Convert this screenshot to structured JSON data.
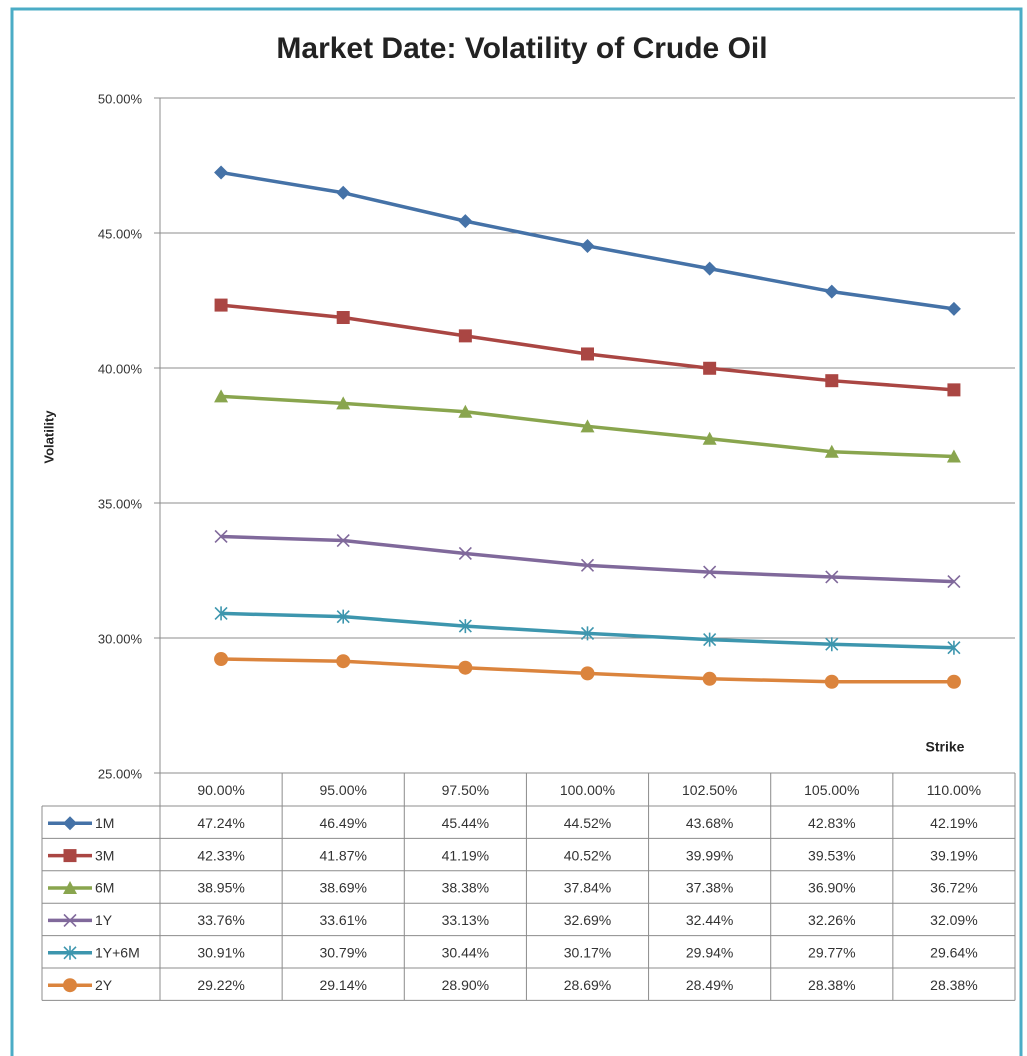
{
  "chart_data": {
    "type": "line",
    "title": "Market Date: Volatility of Crude Oil",
    "ylabel": "Volatility",
    "xlabel": "Strike",
    "categories": [
      "90.00%",
      "95.00%",
      "97.50%",
      "100.00%",
      "102.50%",
      "105.00%",
      "110.00%"
    ],
    "ylim": [
      25,
      50
    ],
    "yticks": [
      {
        "value": 25,
        "label": "25.00%"
      },
      {
        "value": 30,
        "label": "30.00%"
      },
      {
        "value": 35,
        "label": "35.00%"
      },
      {
        "value": 40,
        "label": "40.00%"
      },
      {
        "value": 45,
        "label": "45.00%"
      },
      {
        "value": 50,
        "label": "50.00%"
      }
    ],
    "grid": true,
    "series": [
      {
        "name": "1M",
        "color": "#4572a7",
        "marker": "diamond",
        "values": [
          47.24,
          46.49,
          45.44,
          44.52,
          43.68,
          42.83,
          42.19
        ],
        "value_labels": [
          "47.24%",
          "46.49%",
          "45.44%",
          "44.52%",
          "43.68%",
          "42.83%",
          "42.19%"
        ]
      },
      {
        "name": "3M",
        "color": "#aa4643",
        "marker": "square",
        "values": [
          42.33,
          41.87,
          41.19,
          40.52,
          39.99,
          39.53,
          39.19
        ],
        "value_labels": [
          "42.33%",
          "41.87%",
          "41.19%",
          "40.52%",
          "39.99%",
          "39.53%",
          "39.19%"
        ]
      },
      {
        "name": "6M",
        "color": "#89a54e",
        "marker": "triangle",
        "values": [
          38.95,
          38.69,
          38.38,
          37.84,
          37.38,
          36.9,
          36.72
        ],
        "value_labels": [
          "38.95%",
          "38.69%",
          "38.38%",
          "37.84%",
          "37.38%",
          "36.90%",
          "36.72%"
        ]
      },
      {
        "name": "1Y",
        "color": "#80699b",
        "marker": "x",
        "values": [
          33.76,
          33.61,
          33.13,
          32.69,
          32.44,
          32.26,
          32.09
        ],
        "value_labels": [
          "33.76%",
          "33.61%",
          "33.13%",
          "32.69%",
          "32.44%",
          "32.26%",
          "32.09%"
        ]
      },
      {
        "name": "1Y+6M",
        "color": "#3d96ae",
        "marker": "star",
        "values": [
          30.91,
          30.79,
          30.44,
          30.17,
          29.94,
          29.77,
          29.64
        ],
        "value_labels": [
          "30.91%",
          "30.79%",
          "30.44%",
          "30.17%",
          "29.94%",
          "29.77%",
          "29.64%"
        ]
      },
      {
        "name": "2Y",
        "color": "#db843d",
        "marker": "circle",
        "values": [
          29.22,
          29.14,
          28.9,
          28.69,
          28.49,
          28.38,
          28.38
        ],
        "value_labels": [
          "29.22%",
          "29.14%",
          "28.90%",
          "28.69%",
          "28.49%",
          "28.38%",
          "28.38%"
        ]
      }
    ]
  }
}
